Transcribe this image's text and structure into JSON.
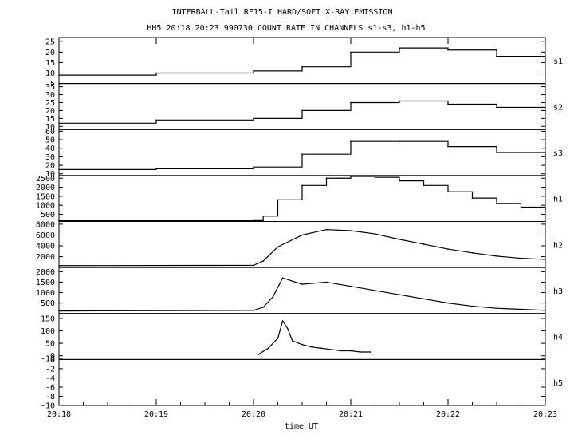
{
  "title_line1": "INTERBALL-Tail RF15-I HARD/SOFT X-RAY EMISSION",
  "title_line2": "HH5 20:18 20:23 990730  COUNT RATE IN CHANNELS s1-s3, h1-h5",
  "chart_data": {
    "type": "line",
    "xlabel": "time UT",
    "x_ticks": [
      "20:18",
      "20:19",
      "20:20",
      "20:21",
      "20:22",
      "20:23"
    ],
    "x_range_minutes": [
      0,
      5
    ],
    "panels": [
      {
        "name": "s1",
        "ylim": [
          5,
          27
        ],
        "yticks": [
          "25",
          "20",
          "15",
          "10",
          "5"
        ],
        "tick_values": [
          25,
          20,
          15,
          10,
          5
        ],
        "style": "step",
        "x": [
          0,
          1,
          2,
          2.5,
          3,
          3.5,
          4,
          4.5,
          5
        ],
        "values": [
          9,
          10,
          11,
          13,
          20,
          22,
          21,
          18,
          16
        ]
      },
      {
        "name": "s2",
        "ylim": [
          8,
          37
        ],
        "yticks": [
          "35",
          "30",
          "25",
          "20",
          "15",
          "10"
        ],
        "tick_values": [
          35,
          30,
          25,
          20,
          15,
          10
        ],
        "style": "step",
        "x": [
          0,
          1,
          2,
          2.5,
          3,
          3.5,
          4,
          4.5,
          5
        ],
        "values": [
          12,
          14,
          15,
          20,
          25,
          26,
          24,
          22,
          20
        ]
      },
      {
        "name": "s3",
        "ylim": [
          8,
          62
        ],
        "yticks": [
          "60",
          "50",
          "40",
          "30",
          "20",
          "10"
        ],
        "tick_values": [
          60,
          50,
          40,
          30,
          20,
          10
        ],
        "style": "step",
        "x": [
          0,
          1,
          2,
          2.5,
          3,
          3.5,
          4,
          4.5,
          5
        ],
        "values": [
          15,
          16,
          18,
          33,
          48,
          48,
          42,
          35,
          28
        ]
      },
      {
        "name": "h1",
        "ylim": [
          100,
          2650
        ],
        "yticks": [
          "2500",
          "2000",
          "1500",
          "1000",
          "500"
        ],
        "tick_values": [
          2500,
          2000,
          1500,
          1000,
          500
        ],
        "style": "step",
        "x": [
          0,
          2,
          2.1,
          2.25,
          2.5,
          2.75,
          3,
          3.25,
          3.5,
          3.75,
          4,
          4.25,
          4.5,
          4.75,
          5
        ],
        "values": [
          140,
          150,
          400,
          1300,
          2100,
          2500,
          2600,
          2550,
          2350,
          2100,
          1750,
          1400,
          1100,
          900,
          800
        ]
      },
      {
        "name": "h2",
        "ylim": [
          0,
          8500
        ],
        "yticks": [
          "8000",
          "6000",
          "4000",
          "2000"
        ],
        "tick_values": [
          8000,
          6000,
          4000,
          2000
        ],
        "style": "line",
        "x": [
          0,
          2,
          2.1,
          2.25,
          2.5,
          2.75,
          3,
          3.25,
          3.5,
          3.75,
          4,
          4.25,
          4.5,
          4.75,
          5
        ],
        "values": [
          350,
          400,
          1200,
          3800,
          6000,
          7000,
          6800,
          6200,
          5200,
          4300,
          3400,
          2700,
          2100,
          1700,
          1500
        ]
      },
      {
        "name": "h3",
        "ylim": [
          0,
          2200
        ],
        "yticks": [
          "2000",
          "1500",
          "1000",
          "500"
        ],
        "tick_values": [
          2000,
          1500,
          1000,
          500
        ],
        "style": "line",
        "x": [
          0,
          2,
          2.1,
          2.2,
          2.3,
          2.5,
          2.75,
          3,
          3.25,
          3.5,
          3.75,
          4,
          4.25,
          4.5,
          4.75,
          5
        ],
        "values": [
          120,
          150,
          300,
          800,
          1700,
          1400,
          1500,
          1300,
          1100,
          900,
          700,
          500,
          350,
          250,
          200,
          150
        ]
      },
      {
        "name": "h4",
        "ylim": [
          -15,
          170
        ],
        "yticks": [
          "150",
          "100",
          "50",
          "0",
          "-10"
        ],
        "tick_values": [
          150,
          100,
          50,
          0,
          -10
        ],
        "style": "line",
        "x": [
          2.05,
          2.15,
          2.25,
          2.3,
          2.35,
          2.4,
          2.5,
          2.6,
          2.7,
          2.8,
          2.9,
          3.0,
          3.1,
          3.2
        ],
        "values": [
          5,
          30,
          70,
          140,
          110,
          60,
          45,
          35,
          30,
          25,
          20,
          20,
          15,
          15
        ]
      },
      {
        "name": "h5",
        "ylim": [
          -10,
          0
        ],
        "yticks": [
          "0",
          "-2",
          "-4",
          "-6",
          "-8",
          "-10"
        ],
        "tick_values": [
          0,
          -2,
          -4,
          -6,
          -8,
          -10
        ],
        "style": "none",
        "x": [],
        "values": []
      }
    ]
  }
}
